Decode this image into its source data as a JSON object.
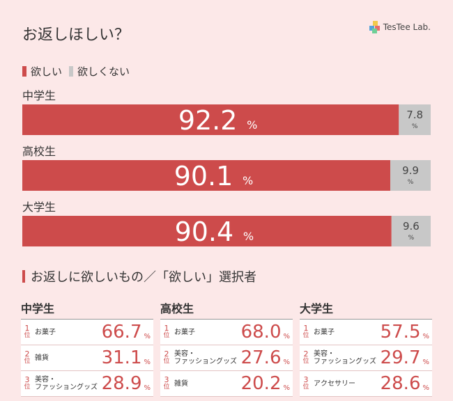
{
  "title": "お返しほしい？",
  "logo_text": "TesTee Lab.",
  "colors": {
    "want": "#cd4b4b",
    "not_want": "#c8c8c8"
  },
  "chart_data": {
    "type": "bar",
    "orientation": "horizontal-stacked-100",
    "categories": [
      "中学生",
      "高校生",
      "大学生"
    ],
    "series": [
      {
        "name": "欲しい",
        "values": [
          92.2,
          90.1,
          90.4
        ]
      },
      {
        "name": "欲しくない",
        "values": [
          7.8,
          9.9,
          9.6
        ]
      }
    ],
    "unit": "%",
    "xlim": [
      0,
      100
    ],
    "legend_position": "top-left",
    "grid": false
  },
  "ranking_section": {
    "title": "お返しに欲しいもの／「欲しい」選択者",
    "rank_suffix": "位",
    "pct": "%",
    "groups": [
      {
        "name": "中学生",
        "items": [
          {
            "rank": "1",
            "name_lines": [
              "お菓子"
            ],
            "value": "66.7"
          },
          {
            "rank": "2",
            "name_lines": [
              "雑貨"
            ],
            "value": "31.1"
          },
          {
            "rank": "3",
            "name_lines": [
              "美容・",
              "ファッショングッズ"
            ],
            "value": "28.9"
          }
        ]
      },
      {
        "name": "高校生",
        "items": [
          {
            "rank": "1",
            "name_lines": [
              "お菓子"
            ],
            "value": "68.0"
          },
          {
            "rank": "2",
            "name_lines": [
              "美容・",
              "ファッショングッズ"
            ],
            "value": "27.6"
          },
          {
            "rank": "3",
            "name_lines": [
              "雑貨"
            ],
            "value": "20.2"
          }
        ]
      },
      {
        "name": "大学生",
        "items": [
          {
            "rank": "1",
            "name_lines": [
              "お菓子"
            ],
            "value": "57.5"
          },
          {
            "rank": "2",
            "name_lines": [
              "美容・",
              "ファッショングッズ"
            ],
            "value": "29.7"
          },
          {
            "rank": "3",
            "name_lines": [
              "アクセサリー"
            ],
            "value": "28.6"
          }
        ]
      }
    ]
  }
}
